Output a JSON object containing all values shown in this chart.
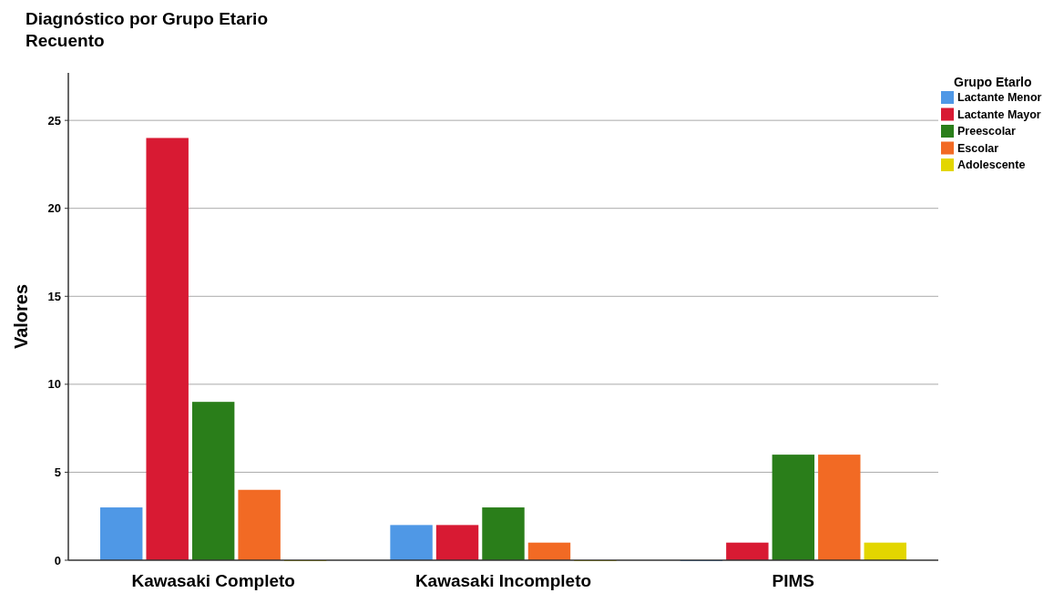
{
  "chart_data": {
    "type": "bar",
    "title": "Diagnóstico por Grupo Etario",
    "subtitle": "Recuento",
    "ylabel": "Valores",
    "legend_title": "Grupo Etarlo",
    "categories": [
      "Kawasaki Completo",
      "Kawasaki Incompleto",
      "PIMS"
    ],
    "series": [
      {
        "name": "Lactante Menor",
        "color": "#4f98e6",
        "values": [
          3,
          2,
          0
        ]
      },
      {
        "name": "Lactante Mayor",
        "color": "#d81a33",
        "values": [
          24,
          2,
          1
        ]
      },
      {
        "name": "Preescolar",
        "color": "#2a7e1a",
        "values": [
          9,
          3,
          6
        ]
      },
      {
        "name": "Escolar",
        "color": "#f26a24",
        "values": [
          4,
          1,
          6
        ]
      },
      {
        "name": "Adolescente",
        "color": "#e3d600",
        "values": [
          0,
          0,
          1
        ]
      }
    ],
    "ylim": [
      0,
      27.7
    ],
    "yticks": [
      0,
      5,
      10,
      15,
      20,
      25
    ],
    "grid": "y",
    "legend": "top right"
  }
}
